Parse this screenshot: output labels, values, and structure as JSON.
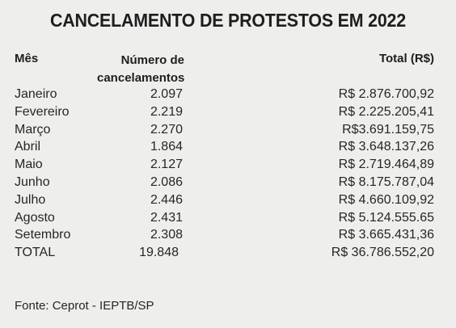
{
  "title": "CANCELAMENTO DE PROTESTOS EM 2022",
  "headers": {
    "month": "Mês",
    "count_line1": "Número de",
    "count_line2": "cancelamentos",
    "total": "Total (R$)"
  },
  "rows": [
    {
      "month": "Janeiro",
      "count": "2.097",
      "total": "R$ 2.876.700,92"
    },
    {
      "month": "Fevereiro",
      "count": "2.219",
      "total": "R$ 2.225.205,41"
    },
    {
      "month": "Março",
      "count": "2.270",
      "total": "R$3.691.159,75"
    },
    {
      "month": "Abril",
      "count": "1.864",
      "total": "R$ 3.648.137,26"
    },
    {
      "month": "Maio",
      "count": "2.127",
      "total": "R$ 2.719.464,89"
    },
    {
      "month": "Junho",
      "count": "2.086",
      "total": "R$ 8.175.787,04"
    },
    {
      "month": "Julho",
      "count": "2.446",
      "total": "R$ 4.660.109,92"
    },
    {
      "month": "Agosto",
      "count": "2.431",
      "total": "R$ 5.124.555.65"
    },
    {
      "month": "Setembro",
      "count": "2.308",
      "total": "R$ 3.665.431,36"
    },
    {
      "month": "TOTAL",
      "count": "19.848",
      "total": "R$ 36.786.552,20"
    }
  ],
  "source": "Fonte: Ceprot - IEPTB/SP"
}
